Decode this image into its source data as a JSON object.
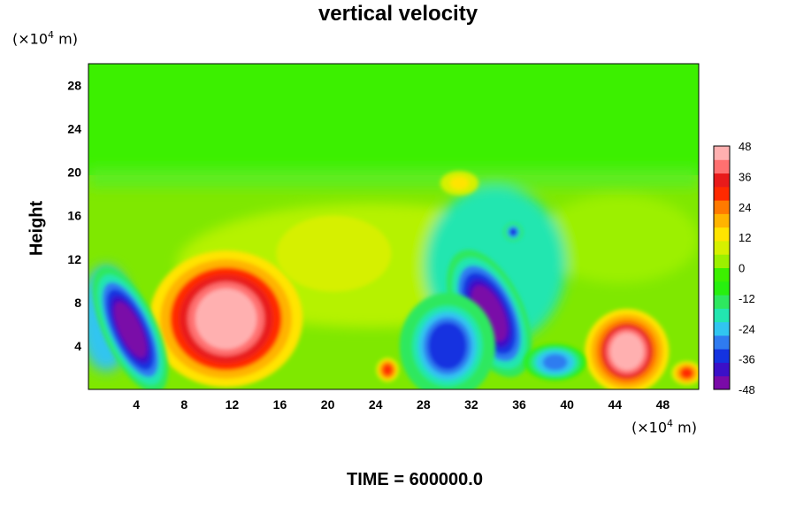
{
  "chart_data": {
    "type": "heatmap",
    "title": "vertical velocity",
    "ylabel": "Height",
    "x_unit_label": "(×10",
    "x_unit_exp": "4",
    "x_unit_suffix": " m)",
    "y_unit_label": "(×10",
    "y_unit_exp": "4",
    "y_unit_suffix": " m)",
    "footer": "TIME = 600000.0",
    "xlim": [
      0,
      51
    ],
    "ylim": [
      0,
      30
    ],
    "x_ticks": [
      4,
      8,
      12,
      16,
      20,
      24,
      28,
      32,
      36,
      40,
      44,
      48
    ],
    "y_ticks": [
      4,
      8,
      12,
      16,
      20,
      24,
      28
    ],
    "colorbar": {
      "ticks": [
        48,
        36,
        24,
        12,
        0,
        -12,
        -24,
        -36,
        -48
      ],
      "range": [
        -48,
        48
      ],
      "colors": [
        "#7a0aa8",
        "#3b10c8",
        "#1433e0",
        "#2f7bf0",
        "#31c5f0",
        "#22e6b0",
        "#2ee85f",
        "#27f00f",
        "#3cf000",
        "#9cf000",
        "#d6f000",
        "#ffe400",
        "#ffb400",
        "#ff7a00",
        "#ff2a00",
        "#e81a1a",
        "#ff7070",
        "#ffb0b0"
      ]
    },
    "features": [
      {
        "x": 11.5,
        "y": 6.5,
        "value": 48,
        "rx": 4.0,
        "ry": 4.5
      },
      {
        "x": 45,
        "y": 3.5,
        "value": 46,
        "rx": 2.2,
        "ry": 2.8
      },
      {
        "x": 3.5,
        "y": 5.5,
        "value": -48,
        "rx": 1.4,
        "ry": 4.5
      },
      {
        "x": 33.5,
        "y": 7,
        "value": -48,
        "rx": 1.8,
        "ry": 4.5
      },
      {
        "x": 30,
        "y": 4,
        "value": -36,
        "rx": 2.5,
        "ry": 3.5
      },
      {
        "x": 35.5,
        "y": 14.5,
        "value": -36,
        "rx": 0.5,
        "ry": 0.6
      },
      {
        "x": 39,
        "y": 2.5,
        "value": -30,
        "rx": 1.6,
        "ry": 1.2
      },
      {
        "x": 25,
        "y": 1.8,
        "value": 30,
        "rx": 0.6,
        "ry": 0.8
      },
      {
        "x": 50,
        "y": 1.5,
        "value": 28,
        "rx": 0.8,
        "ry": 0.8
      },
      {
        "x": 20.5,
        "y": 12.5,
        "value": 10,
        "rx": 3.0,
        "ry": 2.5
      },
      {
        "x": 31,
        "y": 19,
        "value": 12,
        "rx": 1.0,
        "ry": 0.8
      }
    ]
  }
}
